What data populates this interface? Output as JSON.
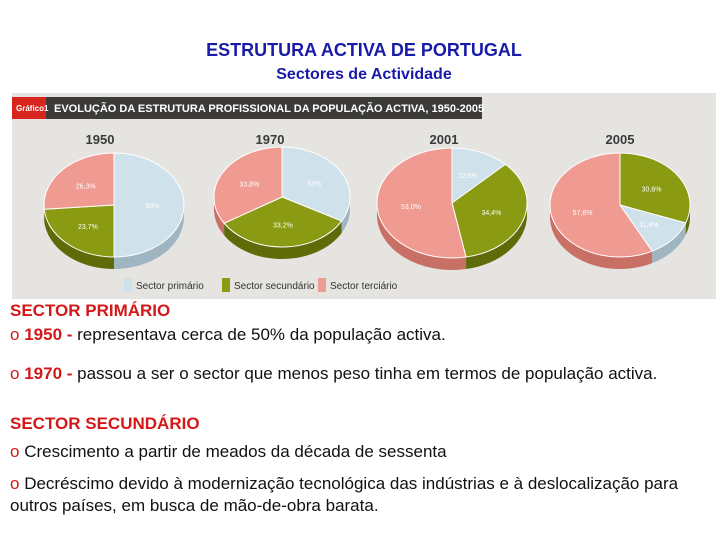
{
  "header": {
    "title": "ESTRUTURA  ACTIVA DE PORTUGAL",
    "subtitle": "Sectores de Actividade"
  },
  "chart_data": {
    "type": "pie",
    "figure_tag": "Gráfico1",
    "title": "EVOLUÇÃO DA ESTRUTURA PROFISSIONAL DA POPULAÇÃO ACTIVA, 1950-2005",
    "legend": [
      "Sector primário",
      "Sector secundário",
      "Sector terciário"
    ],
    "colors": {
      "primario": "#cfe1ea",
      "secundario": "#8a9a12",
      "terciario": "#f09b92",
      "header_bar": "#3d3a3a"
    },
    "pies": [
      {
        "year": "1950",
        "primario": 50,
        "secundario": 23.7,
        "terciario": 26.3,
        "labels": {
          "primario": "50%",
          "secundario": "23,7%",
          "terciario": "26,3%"
        }
      },
      {
        "year": "1970",
        "primario": 33,
        "secundario": 33.2,
        "terciario": 33.8,
        "labels": {
          "primario": "33%",
          "secundario": "33,2%",
          "terciario": "33,8%"
        }
      },
      {
        "year": "2001",
        "primario": 12.6,
        "secundario": 34.4,
        "terciario": 53.0,
        "labels": {
          "primario": "12,6%",
          "secundario": "34,4%",
          "terciario": "53,0%"
        }
      },
      {
        "year": "2005",
        "primario": 11.8,
        "secundario": 30.6,
        "terciario": 57.6,
        "labels": {
          "primario": "11,8%",
          "secundario": "30,6%",
          "terciario": "57,6%"
        }
      }
    ]
  },
  "text": {
    "s1_header": "SECTOR PRIMÁRIO",
    "bullet": "o",
    "b1_year": "1950 -",
    "b1_text": " representava cerca de 50% da população activa.",
    "b2_year": "1970 -",
    "b2_text": " passou a ser o sector que menos peso tinha em termos de população activa.",
    "s2_header": "SECTOR SECUNDÁRIO",
    "b3_text": " Crescimento a partir de meados da década de sessenta",
    "b4_text": " Decréscimo devido à modernização tecnológica das indústrias e à deslocalização para outros países, em busca de mão-de-obra barata."
  }
}
